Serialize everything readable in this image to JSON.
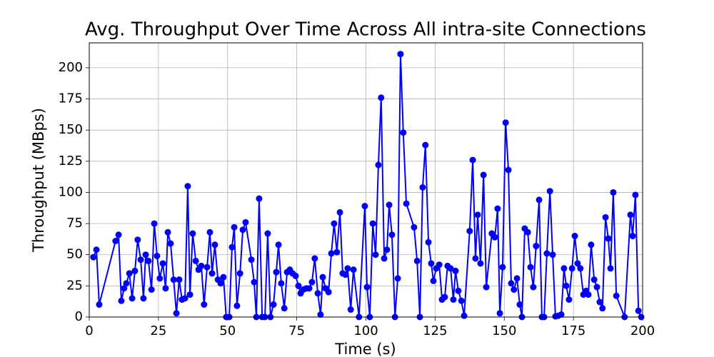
{
  "chart_data": {
    "type": "line",
    "title": "Avg. Throughput Over Time Across All intra-site Connections",
    "x_label": "Time (s)",
    "y_label": "Throughput (MBps)",
    "color": "#0000ff",
    "grid": true,
    "xlim": [
      0,
      200
    ],
    "ylim": [
      0,
      220
    ],
    "xticks": [
      0,
      25,
      50,
      75,
      100,
      125,
      150,
      175,
      200
    ],
    "yticks": [
      0,
      25,
      50,
      75,
      100,
      125,
      150,
      175,
      200
    ],
    "x": [
      1.5,
      2.6,
      3.6,
      9.5,
      10.6,
      11.6,
      12.6,
      13.4,
      14.5,
      15.5,
      16.5,
      17.5,
      18.6,
      19.6,
      20.4,
      21.4,
      22.5,
      23.5,
      24.5,
      25.5,
      26.6,
      27.6,
      28.4,
      29.4,
      30.5,
      31.5,
      32.5,
      33.5,
      34.6,
      35.6,
      36.4,
      37.4,
      38.5,
      39.5,
      40.5,
      41.5,
      42.6,
      43.6,
      44.4,
      45.4,
      46.5,
      47.5,
      48.5,
      49.5,
      50.6,
      51.6,
      52.4,
      53.4,
      54.5,
      55.5,
      56.5,
      58.6,
      59.6,
      60.4,
      61.4,
      62.5,
      63.5,
      64.5,
      65.5,
      66.6,
      67.6,
      68.4,
      69.4,
      70.5,
      71.5,
      72.5,
      73.5,
      74.6,
      75.6,
      76.4,
      77.4,
      78.5,
      79.5,
      80.5,
      81.5,
      82.6,
      83.6,
      84.4,
      85.4,
      86.5,
      87.5,
      88.5,
      89.5,
      90.6,
      91.6,
      92.6,
      93.4,
      94.5,
      95.5,
      97.5,
      99.6,
      100.4,
      101.4,
      102.5,
      103.5,
      104.5,
      105.5,
      106.6,
      107.6,
      108.4,
      109.4,
      110.5,
      111.5,
      112.5,
      113.5,
      114.6,
      117.4,
      118.5,
      119.5,
      120.5,
      121.5,
      122.6,
      123.6,
      124.4,
      125.4,
      126.5,
      127.5,
      128.5,
      129.5,
      130.6,
      131.6,
      132.4,
      133.4,
      134.5,
      135.5,
      137.5,
      138.6,
      139.6,
      140.4,
      141.4,
      142.5,
      143.5,
      145.5,
      146.6,
      147.6,
      148.4,
      149.4,
      150.5,
      151.5,
      152.5,
      153.5,
      154.6,
      155.6,
      156.4,
      157.4,
      158.5,
      159.5,
      160.5,
      161.5,
      162.6,
      163.6,
      164.4,
      165.4,
      166.5,
      167.5,
      168.5,
      169.5,
      170.6,
      171.6,
      172.4,
      173.4,
      174.5,
      175.5,
      176.5,
      177.5,
      178.6,
      179.6,
      180.4,
      181.4,
      182.5,
      183.5,
      184.5,
      185.5,
      186.6,
      187.6,
      188.4,
      189.4,
      190.5,
      193.5,
      195.6,
      196.4,
      197.4,
      198.5,
      199.5
    ],
    "values": [
      48,
      54,
      10,
      61,
      66,
      13,
      23,
      27,
      35,
      15,
      37,
      62,
      46,
      15,
      50,
      45,
      22,
      75,
      49,
      31,
      43,
      23,
      68,
      59,
      30,
      3,
      30,
      14,
      15,
      105,
      18,
      67,
      45,
      38,
      41,
      10,
      40,
      68,
      35,
      58,
      30,
      27,
      32,
      0,
      0,
      56,
      72,
      9,
      35,
      70,
      76,
      46,
      28,
      0,
      95,
      0,
      0,
      67,
      0,
      10,
      36,
      58,
      27,
      7,
      36,
      38,
      35,
      33,
      25,
      19,
      22,
      23,
      23,
      28,
      47,
      19,
      2,
      32,
      23,
      20,
      51,
      75,
      52,
      84,
      35,
      34,
      39,
      6,
      38,
      0,
      89,
      24,
      0,
      75,
      50,
      122,
      176,
      47,
      54,
      90,
      66,
      0,
      31,
      211,
      148,
      91,
      72,
      45,
      0,
      104,
      138,
      60,
      43,
      29,
      39,
      42,
      14,
      16,
      41,
      39,
      14,
      37,
      21,
      13,
      1,
      69,
      126,
      47,
      82,
      43,
      114,
      24,
      67,
      64,
      87,
      3,
      40,
      156,
      118,
      27,
      22,
      31,
      10,
      0,
      71,
      68,
      40,
      24,
      57,
      94,
      0,
      0,
      51,
      101,
      50,
      0.5,
      1,
      2,
      39,
      25,
      14,
      39,
      65,
      43,
      39,
      18,
      21,
      18,
      58,
      30,
      24,
      12,
      7,
      80,
      63,
      39,
      100,
      17,
      0,
      82,
      65,
      98,
      5,
      0
    ]
  }
}
